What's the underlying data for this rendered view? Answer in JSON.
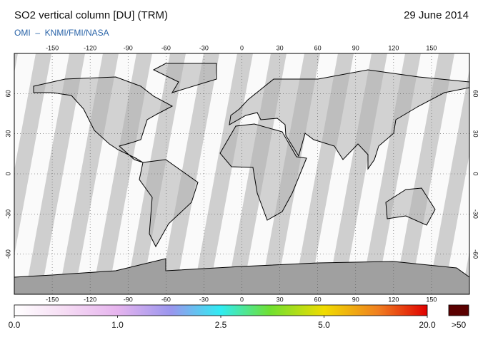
{
  "header": {
    "title": "SO2 vertical column [DU] (TRM)",
    "date": "29 June 2014",
    "source": "OMI  –  KNMI/FMI/NASA"
  },
  "map": {
    "xlim": [
      -180,
      180
    ],
    "ylim": [
      -90,
      90
    ],
    "xticks": [
      -150,
      -120,
      -90,
      -60,
      -30,
      0,
      30,
      60,
      90,
      120,
      150
    ],
    "yticks": [
      -60,
      -30,
      0,
      30,
      60
    ]
  },
  "colorbar": {
    "ticks": [
      {
        "value": 0,
        "label": "0.0"
      },
      {
        "value": 1,
        "label": "1.0"
      },
      {
        "value": 2.5,
        "label": "2.5"
      },
      {
        "value": 5,
        "label": "5.0"
      },
      {
        "value": 20,
        "label": "20.0"
      }
    ],
    "overflow_label": ">50"
  }
}
